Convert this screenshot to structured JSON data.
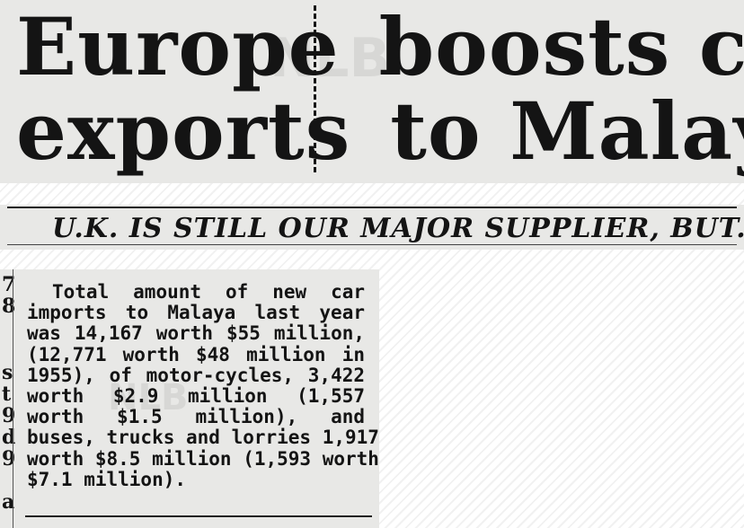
{
  "headline": {
    "left_lines": [
      "Europe",
      "exports"
    ],
    "right_lines": [
      "boosts car",
      "to Malaya"
    ]
  },
  "subheadline": "U.K. IS STILL OUR MAJOR SUPPLIER, BUT...",
  "body_lines": [
    "Total amount of  new car",
    "imports to Malaya  last year",
    "was 14,167 worth $55 million,",
    "(12,771 worth $48  million in",
    "1955), of motor-cycles, 3,422",
    "worth   $2.9  million  (1,557",
    "worth   $1.5  million),  and",
    "buses, trucks and lorries 1,917",
    "worth $8.5 million (1,593 worth",
    "$7.1 million)."
  ],
  "adjacent_column_fragments": [
    "7",
    "8",
    "s",
    "t",
    "9",
    "d",
    "9",
    "a"
  ],
  "watermark_text": "NLB"
}
